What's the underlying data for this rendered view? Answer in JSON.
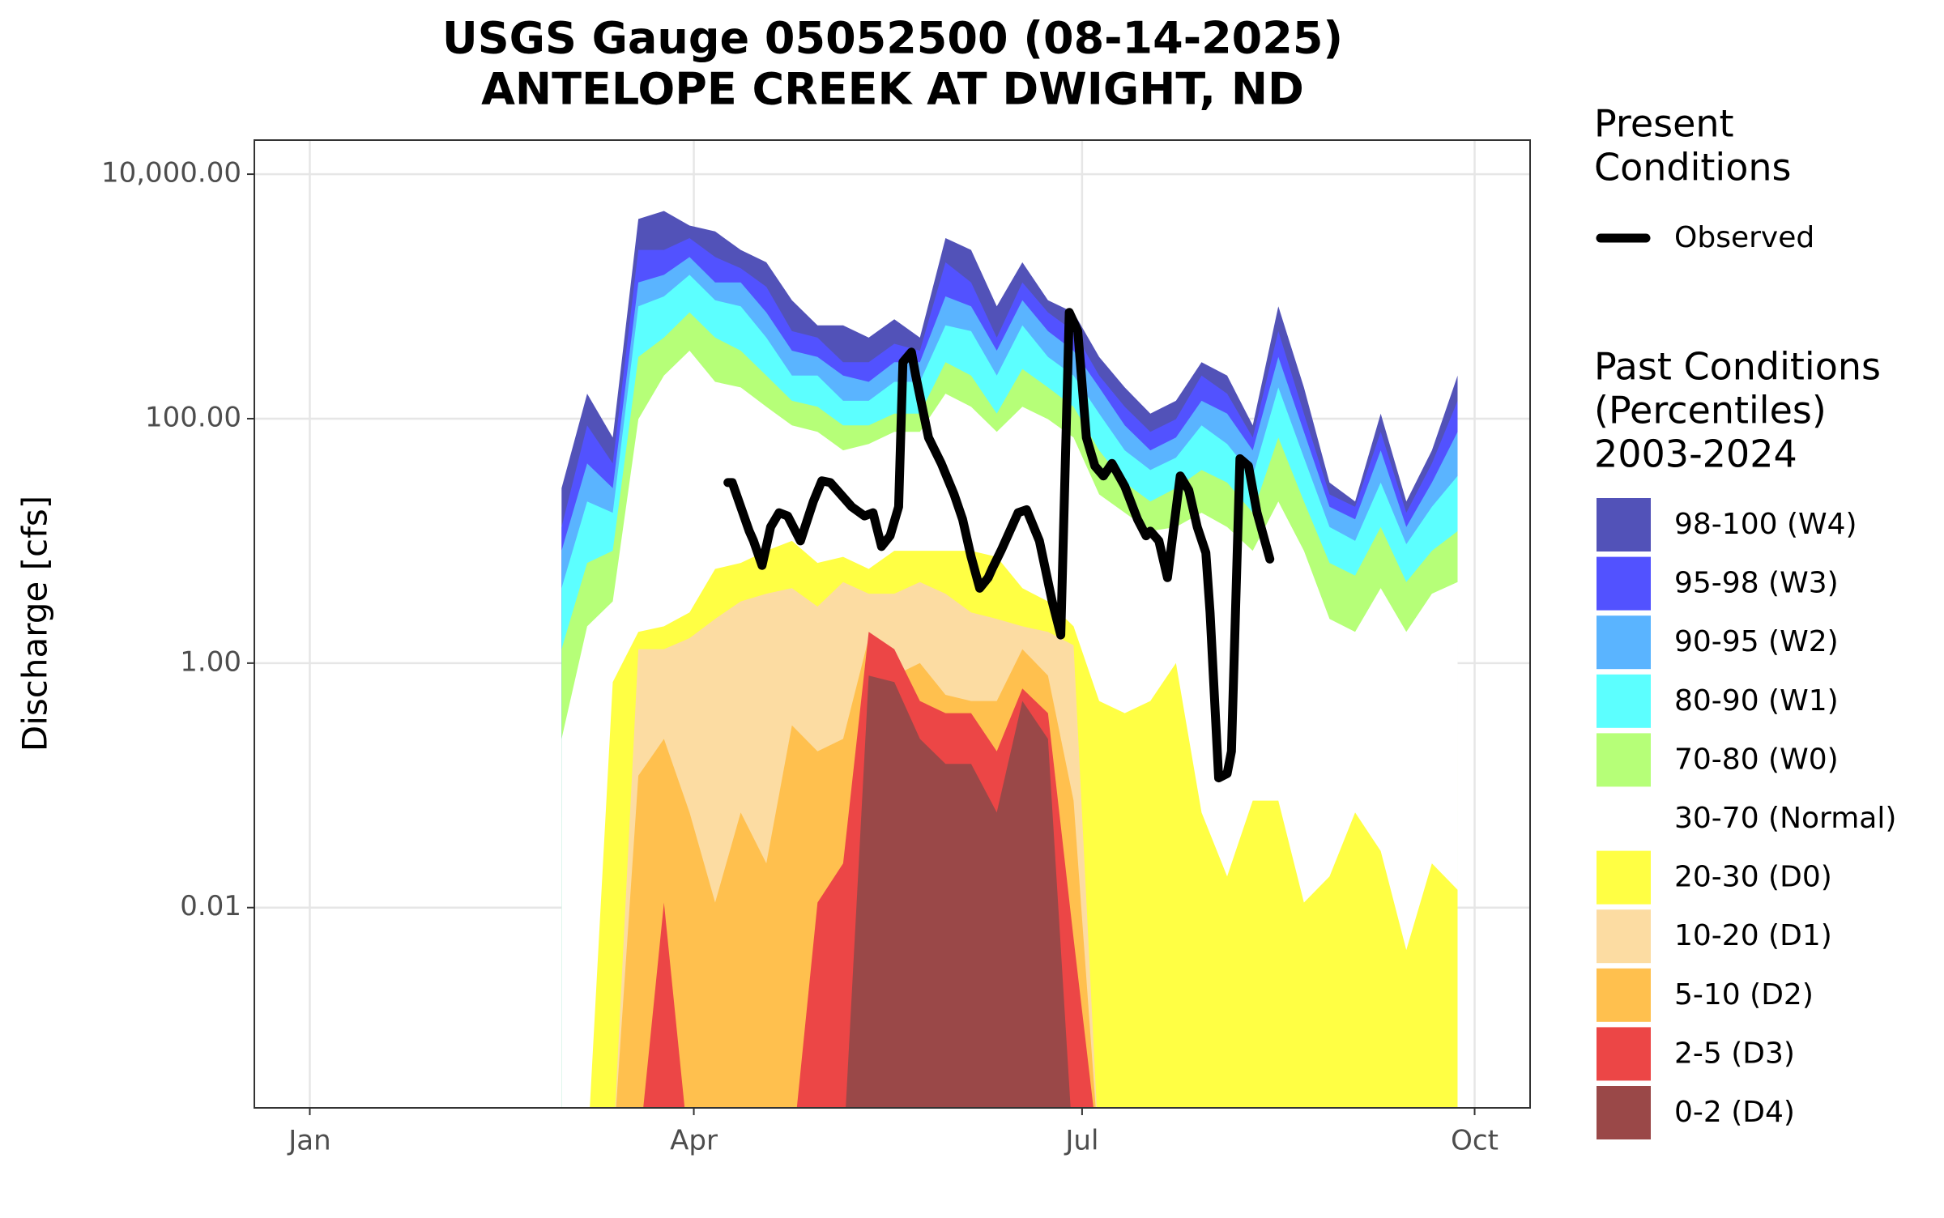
{
  "chart_data": {
    "type": "area",
    "title": "USGS Gauge 05052500 (08-14-2025)",
    "subtitle": "ANTELOPE CREEK AT DWIGHT, ND",
    "y_label": "Discharge [cfs]",
    "log_y": true,
    "grid": true,
    "xlim": [
      -12,
      287
    ],
    "xticks": [
      {
        "value": 1,
        "label": "Jan"
      },
      {
        "value": 91,
        "label": "Apr"
      },
      {
        "value": 182,
        "label": "Jul"
      },
      {
        "value": 274,
        "label": "Oct"
      }
    ],
    "ylim": [
      0.00023,
      19000
    ],
    "yticks": [
      {
        "value": 10000,
        "label": "10,000.00"
      },
      {
        "value": 100,
        "label": "100.00"
      },
      {
        "value": 1,
        "label": "1.00"
      },
      {
        "value": 0.01,
        "label": "0.01"
      }
    ],
    "present_title": [
      "Present",
      "Conditions"
    ],
    "past_title": [
      "Past Conditions",
      "(Percentiles)",
      "2003-2024"
    ],
    "x": [
      60,
      66,
      72,
      78,
      84,
      90,
      96,
      102,
      108,
      114,
      120,
      126,
      132,
      138,
      144,
      150,
      156,
      162,
      168,
      174,
      180,
      186,
      192,
      198,
      204,
      210,
      216,
      222,
      228,
      234,
      240,
      246,
      252,
      258,
      264,
      270
    ],
    "series": [
      {
        "name": "98-100 (W4)",
        "color": "#5252b8",
        "values": [
          27,
          160,
          70,
          4300,
          5000,
          3800,
          3400,
          2400,
          1900,
          930,
          580,
          580,
          460,
          650,
          460,
          3000,
          2400,
          830,
          1900,
          930,
          740,
          320,
          180,
          110,
          140,
          290,
          225,
          88,
          830,
          180,
          30,
          21,
          110,
          21,
          55,
          225
        ]
      },
      {
        "name": "95-98 (W3)",
        "color": "#5252ff",
        "values": [
          13,
          88,
          43,
          2400,
          2400,
          3000,
          2100,
          1700,
          1200,
          520,
          460,
          290,
          290,
          410,
          360,
          1900,
          1300,
          460,
          1300,
          740,
          520,
          225,
          125,
          78,
          99,
          225,
          160,
          70,
          520,
          110,
          24,
          19,
          78,
          17,
          43,
          140
        ]
      },
      {
        "name": "90-95 (W2)",
        "color": "#5ab4ff",
        "values": [
          8.3,
          43,
          27,
          1300,
          1500,
          2100,
          1300,
          1300,
          740,
          360,
          320,
          225,
          200,
          290,
          290,
          1000,
          830,
          360,
          930,
          520,
          360,
          180,
          88,
          55,
          70,
          140,
          110,
          55,
          320,
          78,
          19,
          15,
          55,
          13,
          30,
          78
        ]
      },
      {
        "name": "80-90 (W1)",
        "color": "#5cffff",
        "values": [
          4.1,
          21,
          17,
          830,
          1000,
          1500,
          930,
          830,
          460,
          225,
          225,
          140,
          140,
          200,
          200,
          580,
          520,
          225,
          580,
          320,
          225,
          110,
          55,
          38,
          48,
          88,
          62,
          34,
          180,
          48,
          13,
          10,
          30,
          9.4,
          19,
          34
        ]
      },
      {
        "name": "70-80 (W0)",
        "color": "#b6ff78",
        "values": [
          1.3,
          6.6,
          8.3,
          320,
          460,
          740,
          460,
          360,
          225,
          140,
          125,
          88,
          88,
          110,
          110,
          290,
          225,
          110,
          255,
          180,
          125,
          55,
          30,
          21,
          27,
          38,
          30,
          17,
          70,
          21,
          6.6,
          5.2,
          13,
          4.6,
          8.3,
          12
        ]
      },
      {
        "name": "30-70 (Normal)",
        "color": "#ffffff",
        "values": [
          0.24,
          2,
          3.2,
          99,
          225,
          360,
          200,
          180,
          125,
          88,
          78,
          55,
          62,
          78,
          78,
          160,
          125,
          78,
          125,
          99,
          70,
          24,
          17,
          12,
          13,
          17,
          13,
          8.3,
          21,
          8.3,
          2.3,
          1.8,
          4.1,
          1.8,
          3.7,
          4.6
        ]
      },
      {
        "name": "20-30 (D0)",
        "color": "#ffff44",
        "values": [
          0,
          0,
          0.7,
          1.8,
          2,
          2.6,
          5.9,
          6.6,
          8.3,
          10,
          6.6,
          7.4,
          5.9,
          8.3,
          8.3,
          8.3,
          8.3,
          7.4,
          4.1,
          3.2,
          2,
          0.49,
          0.39,
          0.49,
          1,
          0.06,
          0.018,
          0.075,
          0.075,
          0.011,
          0.018,
          0.06,
          0.029,
          0.0045,
          0.023,
          0.014
        ]
      },
      {
        "name": "10-20 (D1)",
        "color": "#fcdca2",
        "values": [
          0,
          0,
          0,
          1.3,
          1.3,
          1.6,
          2.3,
          3.2,
          3.7,
          4.1,
          2.9,
          4.6,
          3.7,
          3.7,
          4.6,
          3.7,
          2.6,
          2.3,
          2,
          1.8,
          1.4,
          0,
          0,
          0,
          0,
          0,
          0,
          0,
          0,
          0,
          0,
          0,
          0,
          0,
          0,
          0
        ]
      },
      {
        "name": "5-10 (D2)",
        "color": "#ffc04e",
        "values": [
          0,
          0,
          0,
          0.12,
          0.24,
          0.06,
          0.011,
          0.06,
          0.023,
          0.31,
          0.19,
          0.24,
          1.6,
          0.79,
          1,
          0.55,
          0.49,
          0.49,
          1.3,
          0.79,
          0.075,
          0,
          0,
          0,
          0,
          0,
          0,
          0,
          0,
          0,
          0,
          0,
          0,
          0,
          0,
          0
        ]
      },
      {
        "name": "2-5 (D3)",
        "color": "#ec4646",
        "values": [
          0,
          0,
          0,
          0,
          0.011,
          0,
          0,
          0,
          0,
          0,
          0.011,
          0.023,
          1.8,
          1.3,
          0.49,
          0.39,
          0.39,
          0.19,
          0.62,
          0.39,
          0.0056,
          0,
          0,
          0,
          0,
          0,
          0,
          0,
          0,
          0,
          0,
          0,
          0,
          0,
          0,
          0
        ]
      },
      {
        "name": "0-2 (D4)",
        "color": "#9a4848",
        "values": [
          0,
          0,
          0,
          0,
          0,
          0,
          0,
          0,
          0,
          0,
          0,
          0,
          0.79,
          0.7,
          0.24,
          0.15,
          0.15,
          0.06,
          0.49,
          0.24,
          0,
          0,
          0,
          0,
          0,
          0,
          0,
          0,
          0,
          0,
          0,
          0,
          0,
          0,
          0,
          0
        ]
      }
    ],
    "observed": {
      "name": "Observed",
      "color": "#000000",
      "x": [
        99,
        100,
        104,
        105,
        107,
        109,
        111,
        113,
        116,
        119,
        121,
        123,
        128,
        131,
        133,
        135,
        137,
        139,
        140,
        142,
        143,
        146,
        149,
        152,
        154,
        156,
        158,
        160,
        161,
        163,
        167,
        169,
        172,
        175,
        177,
        179,
        181,
        183,
        185,
        187,
        189,
        192,
        195,
        197,
        198,
        200,
        202,
        205,
        207,
        209,
        211,
        212,
        214,
        216,
        217,
        219,
        221,
        223,
        226
      ],
      "values": [
        30,
        30,
        12,
        10,
        6.3,
        13,
        17,
        16,
        10,
        21,
        31,
        30,
        19,
        16,
        17,
        9,
        11,
        19,
        290,
        350,
        225,
        70,
        43,
        24,
        15,
        7.4,
        4.1,
        5,
        6,
        8.3,
        17,
        18,
        10,
        3.2,
        1.7,
        740,
        520,
        70,
        41,
        34,
        43,
        28,
        15,
        11,
        12,
        10,
        5,
        34,
        26,
        13,
        8,
        2.6,
        0.115,
        0.125,
        0.19,
        47,
        41,
        17,
        7.1
      ]
    }
  }
}
